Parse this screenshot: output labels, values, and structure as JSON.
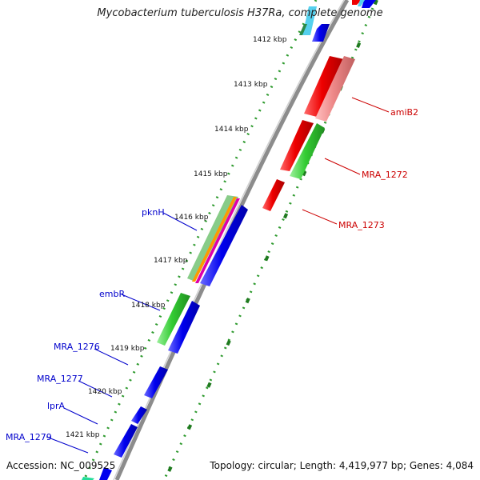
{
  "title": "Mycobacterium tuberculosis H37Ra, complete genome",
  "footer": {
    "accession": "Accession: NC_009525",
    "topology": "Topology: circular; Length: 4,419,977 bp; Genes: 4,084"
  },
  "colors": {
    "backbone": "#8c8c8c",
    "tick_dots": "#2e9a2e",
    "tick_dash": "#1f7a1f",
    "gene_blue": "#0000ee",
    "gene_red": "#ee0000",
    "gene_green": "#33cc33",
    "gene_pink": "#ee8888",
    "label_blue": "#0000cc",
    "label_red": "#cc0000"
  },
  "kbp_ticks": [
    "1412 kbp",
    "1413 kbp",
    "1414 kbp",
    "1415 kbp",
    "1416 kbp",
    "1417 kbp",
    "1418 kbp",
    "1419 kbp",
    "1420 kbp",
    "1421 kbp"
  ],
  "gene_labels": {
    "right": [
      "amiB2",
      "MRA_1272",
      "MRA_1273"
    ],
    "left": [
      "pknH",
      "embR",
      "MRA_1276",
      "MRA_1277",
      "lprA",
      "MRA_1279"
    ]
  }
}
